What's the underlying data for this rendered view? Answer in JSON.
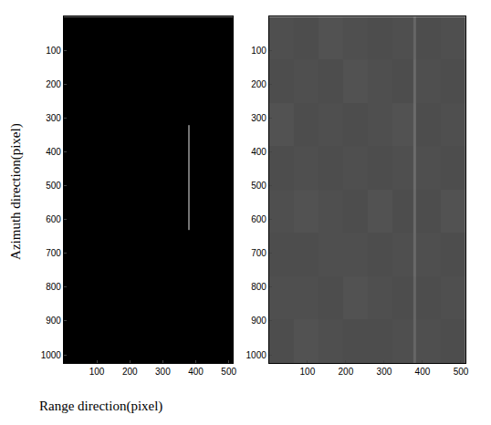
{
  "chart_data": [
    {
      "type": "heatmap",
      "xlabel": "Range direction(pixel)",
      "ylabel": "Azimuth direction(pixel)",
      "x": [
        0,
        375,
        383,
        512
      ],
      "y": [
        0,
        320,
        630,
        1024
      ],
      "cells": [
        [
          0,
          0,
          0
        ],
        [
          0,
          0.45,
          0
        ],
        [
          0,
          0,
          0
        ]
      ],
      "zlim": [
        0,
        1
      ],
      "xlim": [
        0,
        512
      ],
      "ylim": [
        0,
        1024
      ],
      "xticks": [
        100,
        200,
        300,
        400,
        500
      ],
      "yticks": [
        100,
        200,
        300,
        400,
        500,
        600,
        700,
        800,
        900,
        1000
      ],
      "color": "gray"
    },
    {
      "type": "heatmap",
      "x": [
        0,
        64,
        128,
        192,
        256,
        320,
        375,
        383,
        448,
        512
      ],
      "y": [
        0,
        128,
        256,
        384,
        512,
        640,
        768,
        896,
        1024
      ],
      "cells": [
        [
          0.31,
          0.3,
          0.32,
          0.31,
          0.3,
          0.31,
          0.4,
          0.3,
          0.31
        ],
        [
          0.3,
          0.31,
          0.3,
          0.32,
          0.31,
          0.3,
          0.41,
          0.31,
          0.3
        ],
        [
          0.32,
          0.3,
          0.31,
          0.3,
          0.31,
          0.32,
          0.42,
          0.3,
          0.31
        ],
        [
          0.3,
          0.31,
          0.3,
          0.31,
          0.3,
          0.31,
          0.42,
          0.31,
          0.3
        ],
        [
          0.31,
          0.32,
          0.31,
          0.3,
          0.32,
          0.3,
          0.41,
          0.3,
          0.32
        ],
        [
          0.3,
          0.3,
          0.31,
          0.31,
          0.3,
          0.31,
          0.41,
          0.31,
          0.3
        ],
        [
          0.31,
          0.31,
          0.3,
          0.32,
          0.31,
          0.3,
          0.4,
          0.3,
          0.31
        ],
        [
          0.3,
          0.32,
          0.31,
          0.3,
          0.3,
          0.31,
          0.4,
          0.31,
          0.3
        ]
      ],
      "zlim": [
        0,
        1
      ],
      "xlim": [
        0,
        512
      ],
      "ylim": [
        0,
        1024
      ],
      "xticks": [
        100,
        200,
        300,
        400,
        500
      ],
      "yticks": [
        100,
        200,
        300,
        400,
        500,
        600,
        700,
        800,
        900,
        1000
      ],
      "color": "gray"
    }
  ]
}
